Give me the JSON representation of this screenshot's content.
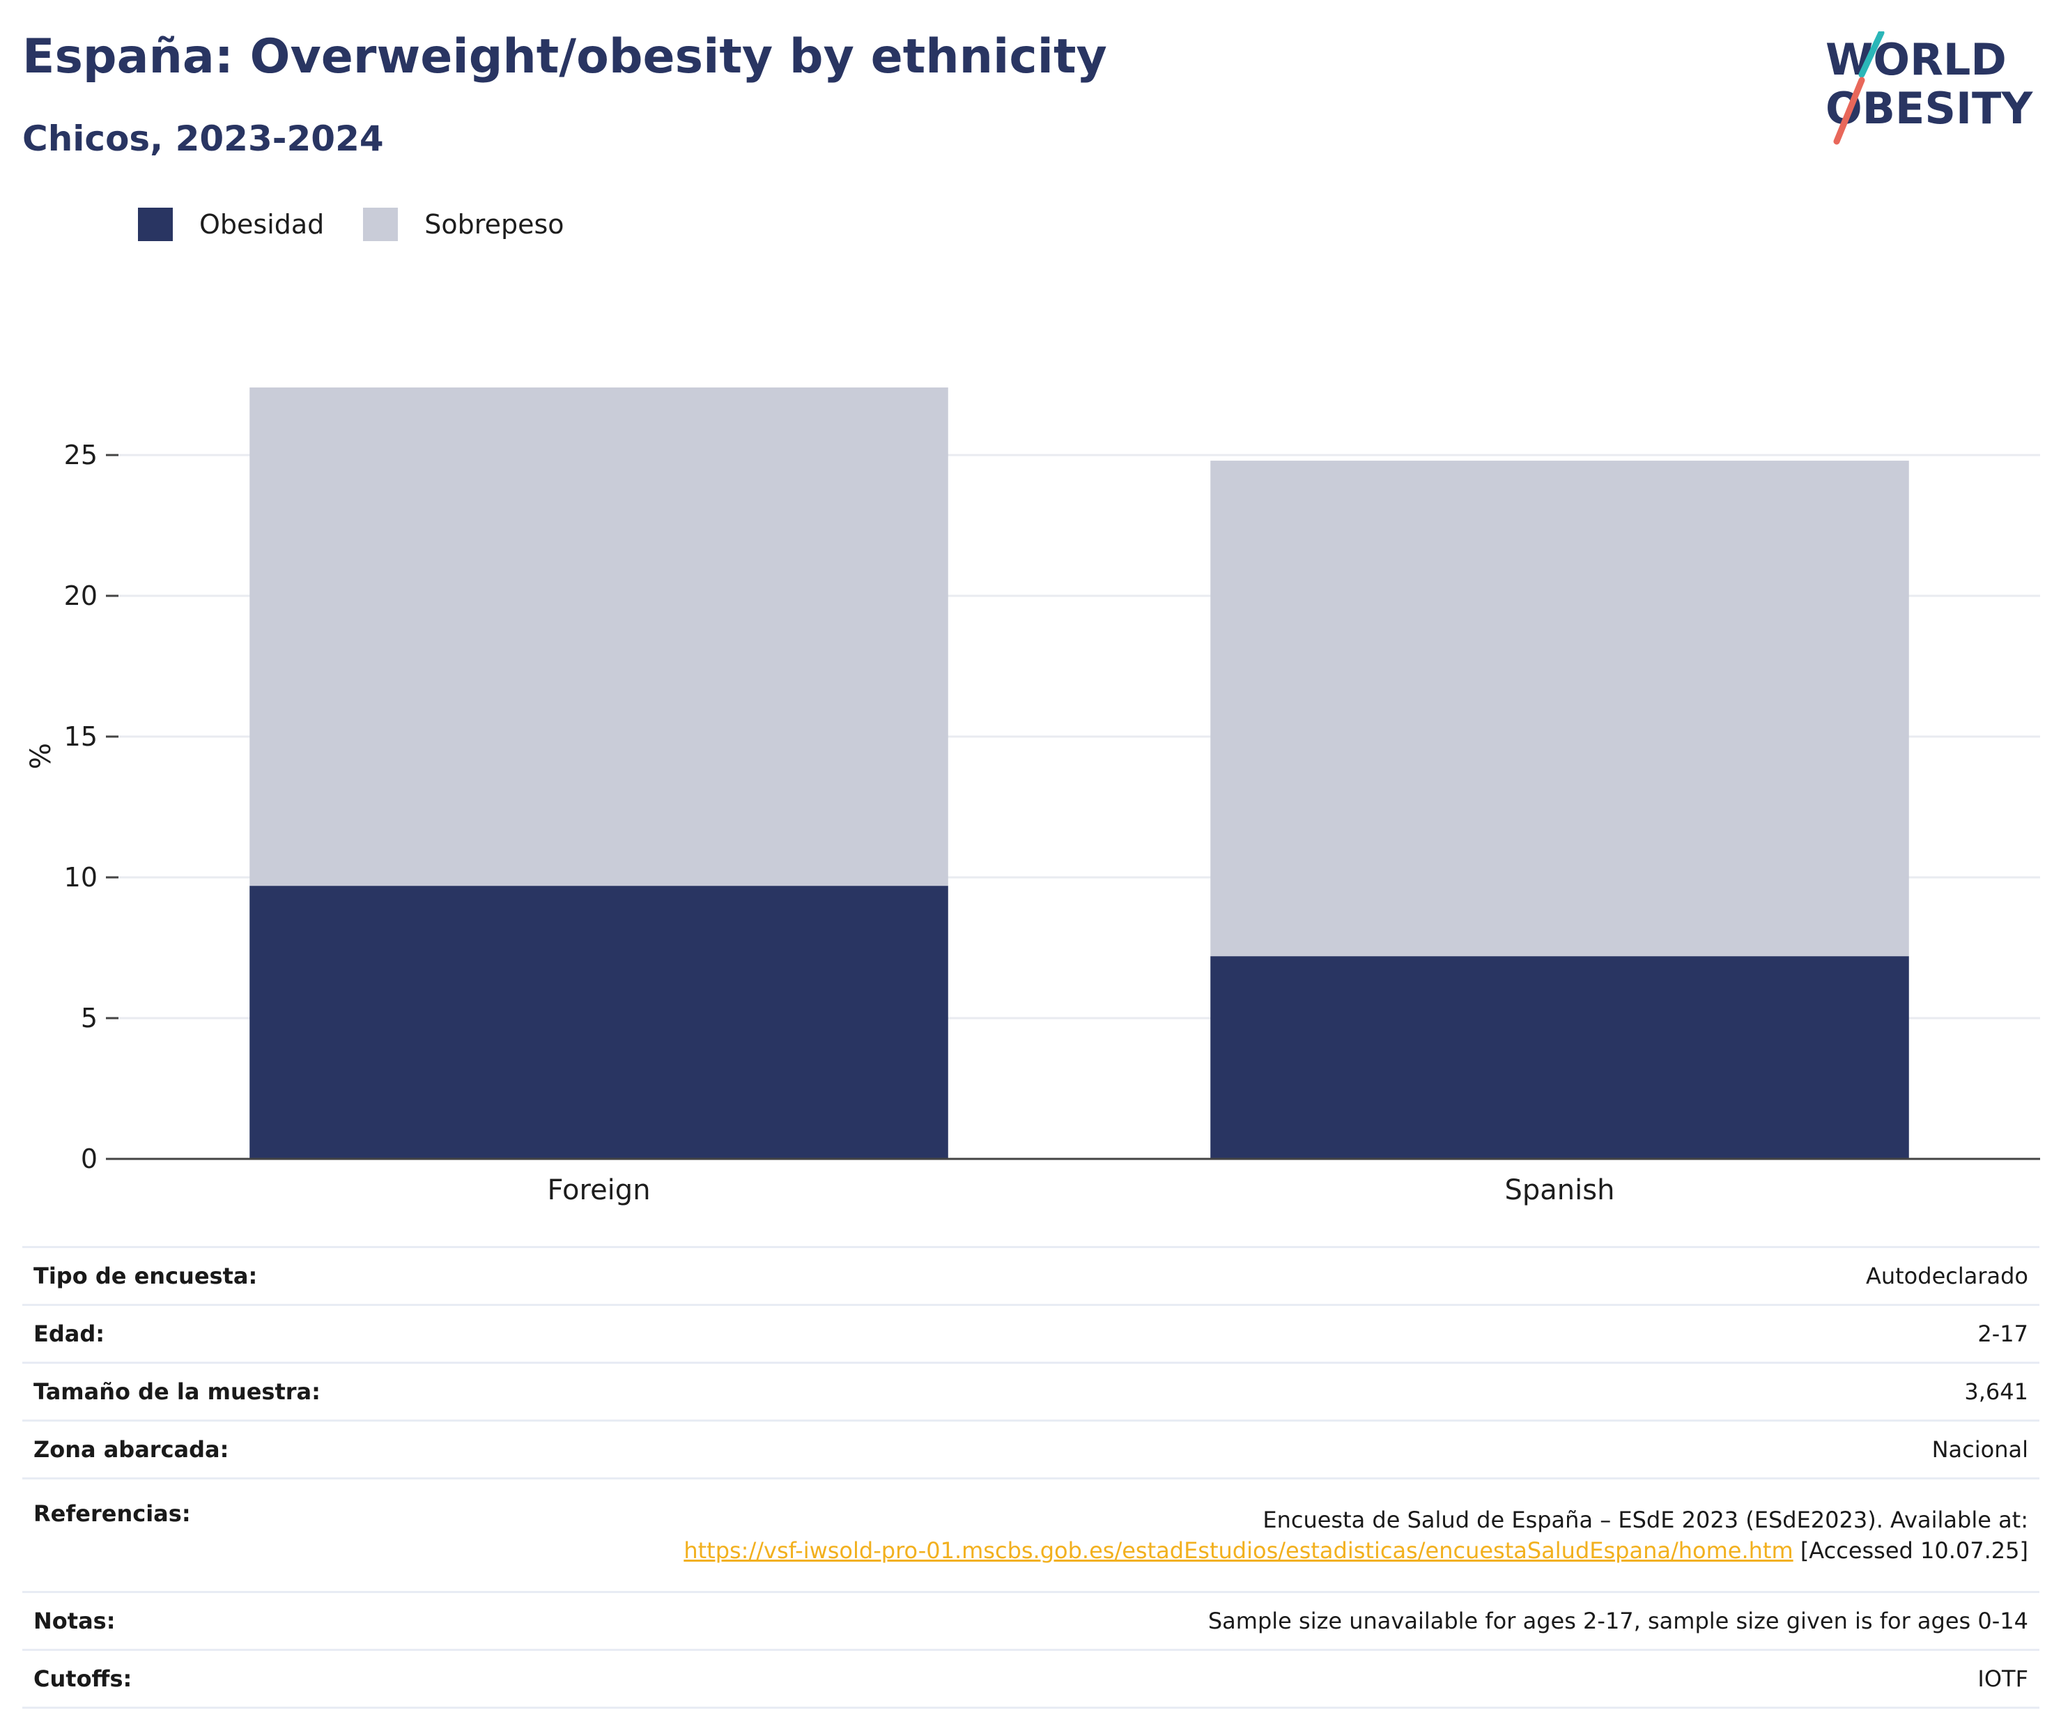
{
  "header": {
    "title": "España: Overweight/obesity by ethnicity",
    "subtitle": "Chicos, 2023-2024"
  },
  "logo": {
    "line1": "WORLD",
    "line2": "OBESITY"
  },
  "colors": {
    "obesidad": "#293562",
    "sobrepeso": "#c9ccd8",
    "accent_teal": "#2bb6b8",
    "accent_coral": "#e8675a",
    "link": "#f2b01e"
  },
  "legend": [
    {
      "label": "Obesidad",
      "color": "#293562"
    },
    {
      "label": "Sobrepeso",
      "color": "#c9ccd8"
    }
  ],
  "chart_data": {
    "type": "bar",
    "stacked": true,
    "categories": [
      "Foreign",
      "Spanish"
    ],
    "series": [
      {
        "name": "Obesidad",
        "values": [
          9.7,
          7.2
        ]
      },
      {
        "name": "Sobrepeso",
        "values": [
          17.7,
          17.6
        ]
      }
    ],
    "ylabel": "%",
    "yticks": [
      0,
      5,
      10,
      15,
      20,
      25
    ],
    "ylim": [
      0,
      28
    ],
    "grid": true,
    "legend_position": "top-left"
  },
  "info": [
    {
      "key": "Tipo de encuesta:",
      "value": "Autodeclarado"
    },
    {
      "key": "Edad:",
      "value": "2-17"
    },
    {
      "key": "Tamaño de la muestra:",
      "value": "3,641"
    },
    {
      "key": "Zona abarcada:",
      "value": "Nacional"
    },
    {
      "key": "Referencias:",
      "value_prefix": "Encuesta de Salud de España – ESdE 2023 (ESdE2023). Available at: ",
      "link": "https://vsf-iwsold-pro-01.mscbs.gob.es/estadEstudios/estadisticas/encuestaSaludEspana/home.htm",
      "value_suffix": " [Accessed 10.07.25]"
    },
    {
      "key": "Notas:",
      "value": "Sample size unavailable for ages 2-17, sample size given is for ages 0-14"
    },
    {
      "key": "Cutoffs:",
      "value": "IOTF"
    }
  ]
}
